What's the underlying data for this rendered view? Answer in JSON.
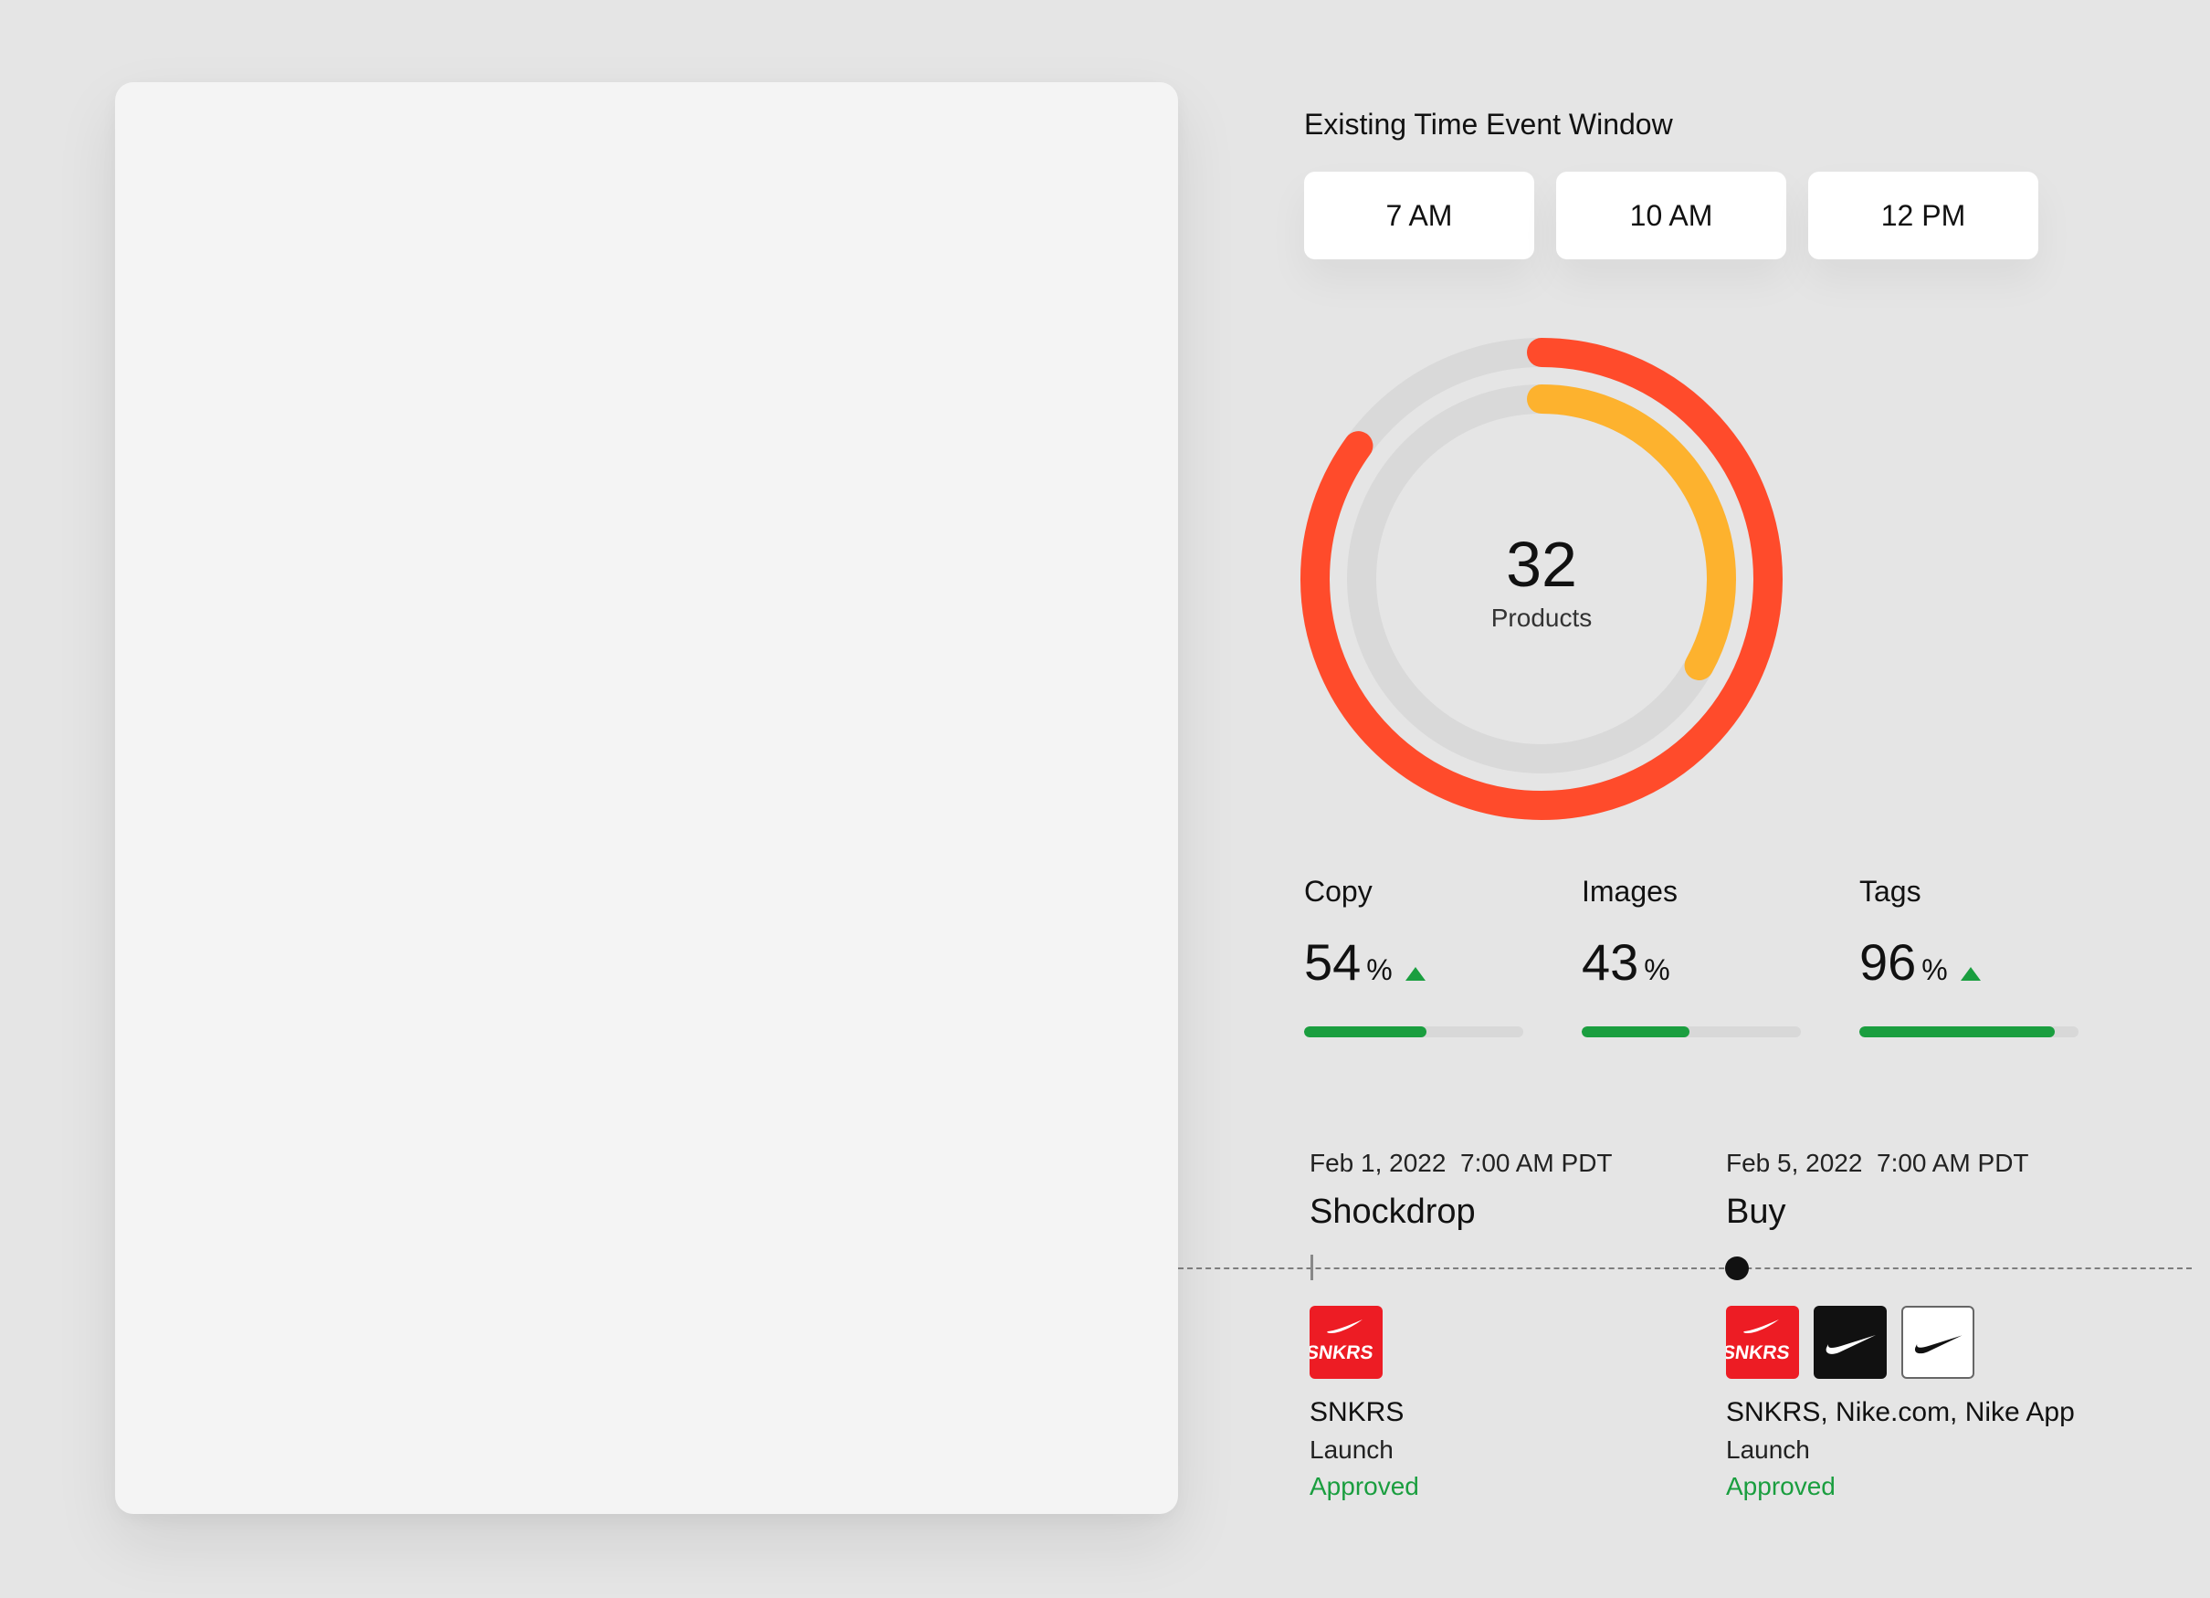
{
  "window_section": {
    "title": "Existing Time Event Window",
    "times": [
      "7 AM",
      "10 AM",
      "12 PM"
    ]
  },
  "summary": {
    "count": "32",
    "count_label": "Products",
    "rings": [
      {
        "name": "outer",
        "fraction": 0.85,
        "color": "#ff4b2b"
      },
      {
        "name": "inner",
        "fraction": 0.33,
        "color": "#fdb22e"
      }
    ],
    "track_color": "#d9d9d9"
  },
  "stats": [
    {
      "label": "Copy",
      "value": "54",
      "unit": "%",
      "trend": "up",
      "fill_fraction": 0.56
    },
    {
      "label": "Images",
      "value": "43",
      "unit": "%",
      "trend": "none",
      "fill_fraction": 0.49
    },
    {
      "label": "Tags",
      "value": "96",
      "unit": "%",
      "trend": "up",
      "fill_fraction": 0.89
    }
  ],
  "colors": {
    "positive": "#1a9e3f",
    "snkrs_red": "#ed1c24"
  },
  "events": [
    {
      "date": "Feb 1, 2022  7:00 AM PDT",
      "name": "Shockdrop",
      "marker": "tick",
      "logos": [
        {
          "icon": "snkrs-logo-icon",
          "text": "SNKRS"
        }
      ],
      "channels": "SNKRS",
      "type": "Launch",
      "status": "Approved"
    },
    {
      "date": "Feb 5, 2022  7:00 AM PDT",
      "name": "Buy",
      "marker": "dot",
      "logos": [
        {
          "icon": "snkrs-logo-icon",
          "text": "SNKRS"
        },
        {
          "icon": "nike-swoosh-black-icon"
        },
        {
          "icon": "nike-swoosh-white-icon"
        }
      ],
      "channels": "SNKRS, Nike.com, Nike App",
      "type": "Launch",
      "status": "Approved"
    }
  ]
}
